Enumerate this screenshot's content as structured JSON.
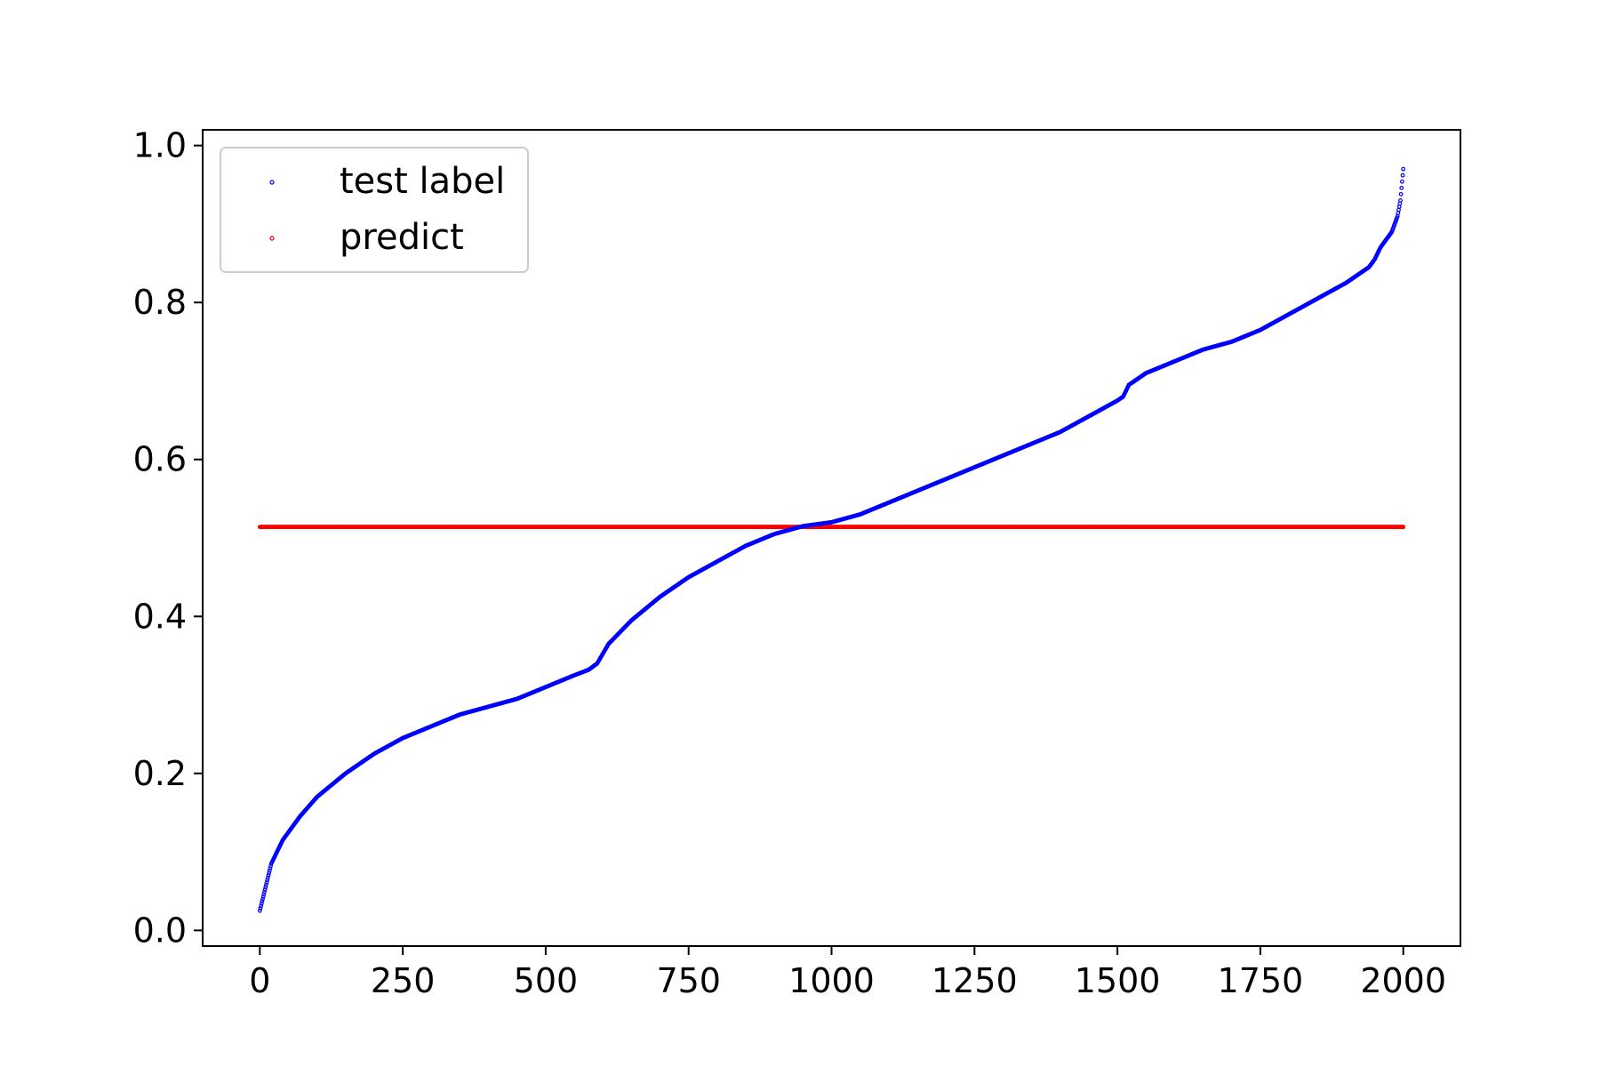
{
  "chart_data": {
    "type": "scatter",
    "title": "",
    "xlabel": "",
    "ylabel": "",
    "xlim": [
      -100,
      2100
    ],
    "ylim": [
      -0.02,
      1.02
    ],
    "xticks": [
      0,
      250,
      500,
      750,
      1000,
      1250,
      1500,
      1750,
      2000
    ],
    "yticks": [
      0.0,
      0.2,
      0.4,
      0.6,
      0.8,
      1.0
    ],
    "xtick_labels": [
      "0",
      "250",
      "500",
      "750",
      "1000",
      "1250",
      "1500",
      "1750",
      "2000"
    ],
    "ytick_labels": [
      "0.0",
      "0.2",
      "0.4",
      "0.6",
      "0.8",
      "1.0"
    ],
    "grid": false,
    "legend_position": "upper-left",
    "series": [
      {
        "name": "test label",
        "color": "#0000ff",
        "point_count": 2001,
        "x_range": [
          0,
          2000
        ],
        "trend_x": [
          0,
          10,
          20,
          40,
          70,
          100,
          150,
          200,
          250,
          300,
          350,
          400,
          450,
          500,
          550,
          575,
          590,
          610,
          650,
          700,
          750,
          800,
          850,
          900,
          950,
          1000,
          1050,
          1100,
          1150,
          1200,
          1250,
          1300,
          1350,
          1400,
          1450,
          1500,
          1510,
          1520,
          1550,
          1600,
          1650,
          1700,
          1750,
          1800,
          1850,
          1900,
          1940,
          1950,
          1960,
          1980,
          1990,
          1995,
          2000
        ],
        "trend_y": [
          0.025,
          0.055,
          0.085,
          0.115,
          0.145,
          0.17,
          0.2,
          0.225,
          0.245,
          0.26,
          0.275,
          0.285,
          0.295,
          0.31,
          0.325,
          0.332,
          0.34,
          0.365,
          0.395,
          0.425,
          0.45,
          0.47,
          0.49,
          0.505,
          0.515,
          0.52,
          0.53,
          0.545,
          0.56,
          0.575,
          0.59,
          0.605,
          0.62,
          0.635,
          0.655,
          0.675,
          0.68,
          0.695,
          0.71,
          0.725,
          0.74,
          0.75,
          0.765,
          0.785,
          0.805,
          0.825,
          0.845,
          0.855,
          0.87,
          0.89,
          0.91,
          0.93,
          0.97
        ]
      },
      {
        "name": "predict",
        "color": "#ff0000",
        "point_count": 2001,
        "x_range": [
          0,
          2000
        ],
        "constant_y": 0.514
      }
    ]
  }
}
